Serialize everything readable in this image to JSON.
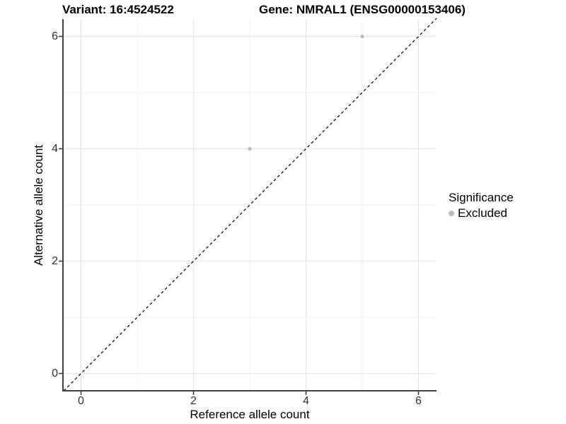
{
  "titles": {
    "variant": "Variant: 16:4524522",
    "gene": "Gene: NMRAL1 (ENSG00000153406)"
  },
  "chart_data": {
    "type": "scatter",
    "title_left": "Variant: 16:4524522",
    "title_right": "Gene: NMRAL1 (ENSG00000153406)",
    "xlabel": "Reference allele count",
    "ylabel": "Alternative allele count",
    "x_ticks": [
      "0",
      "2",
      "4",
      "6"
    ],
    "y_ticks": [
      "0",
      "2",
      "4",
      "6"
    ],
    "x_tick_values": [
      0,
      2,
      4,
      6
    ],
    "y_tick_values": [
      0,
      2,
      4,
      6
    ],
    "minor_tick_values": [
      1,
      3,
      5
    ],
    "xlim": [
      -0.31,
      6.32
    ],
    "ylim": [
      -0.31,
      6.32
    ],
    "grid": "on",
    "points": [
      {
        "x": 3,
        "y": 4,
        "series": "Excluded"
      },
      {
        "x": 5,
        "y": 6,
        "series": "Excluded"
      }
    ],
    "reference_line": {
      "type": "identity",
      "slope": 1,
      "intercept": 0,
      "style": "dashed",
      "color": "#000000"
    },
    "legend": {
      "position": "right",
      "title": "Significance",
      "items": [
        {
          "label": "Excluded",
          "color": "#bdbdbd"
        }
      ]
    },
    "colors": {
      "point": "#bdbdbd",
      "axis_line": "#404040",
      "tick_mark": "#404040",
      "grid_major": "#e7e7e7",
      "grid_minor": "#f2f2f2",
      "background": "#ffffff"
    }
  }
}
